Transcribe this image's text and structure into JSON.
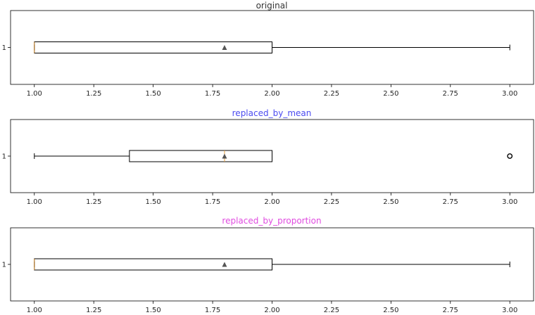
{
  "chart_data": [
    {
      "type": "boxplot",
      "orientation": "horizontal",
      "title": "original",
      "title_color": "#333333",
      "y_tick_labels": [
        "1"
      ],
      "xlim": [
        0.9,
        3.1
      ],
      "x_ticks": [
        1.0,
        1.25,
        1.5,
        1.75,
        2.0,
        2.25,
        2.5,
        2.75,
        3.0
      ],
      "x_tick_labels": [
        "1.00",
        "1.25",
        "1.50",
        "1.75",
        "2.00",
        "2.25",
        "2.50",
        "2.75",
        "3.00"
      ],
      "box": {
        "whisker_low": 1.0,
        "q1": 1.0,
        "median": 1.0,
        "q3": 2.0,
        "whisker_high": 3.0,
        "mean": 1.8,
        "outliers": []
      },
      "grid": false
    },
    {
      "type": "boxplot",
      "orientation": "horizontal",
      "title": "replaced_by_mean",
      "title_color": "#4b4bf0",
      "y_tick_labels": [
        "1"
      ],
      "xlim": [
        0.9,
        3.1
      ],
      "x_ticks": [
        1.0,
        1.25,
        1.5,
        1.75,
        2.0,
        2.25,
        2.5,
        2.75,
        3.0
      ],
      "x_tick_labels": [
        "1.00",
        "1.25",
        "1.50",
        "1.75",
        "2.00",
        "2.25",
        "2.50",
        "2.75",
        "3.00"
      ],
      "box": {
        "whisker_low": 1.0,
        "q1": 1.4,
        "median": 1.8,
        "q3": 2.0,
        "whisker_high": 2.0,
        "mean": 1.8,
        "outliers": [
          3.0
        ]
      },
      "grid": false
    },
    {
      "type": "boxplot",
      "orientation": "horizontal",
      "title": "replaced_by_proportion",
      "title_color": "#e04be0",
      "y_tick_labels": [
        "1"
      ],
      "xlim": [
        0.9,
        3.1
      ],
      "x_ticks": [
        1.0,
        1.25,
        1.5,
        1.75,
        2.0,
        2.25,
        2.5,
        2.75,
        3.0
      ],
      "x_tick_labels": [
        "1.00",
        "1.25",
        "1.50",
        "1.75",
        "2.00",
        "2.25",
        "2.50",
        "2.75",
        "3.00"
      ],
      "box": {
        "whisker_low": 1.0,
        "q1": 1.0,
        "median": 1.0,
        "q3": 2.0,
        "whisker_high": 3.0,
        "mean": 1.8,
        "outliers": []
      },
      "grid": false
    }
  ],
  "colors": {
    "axes": "#000000",
    "box": "#000000",
    "mean_marker": "#555555",
    "tick_text": "#262626"
  }
}
